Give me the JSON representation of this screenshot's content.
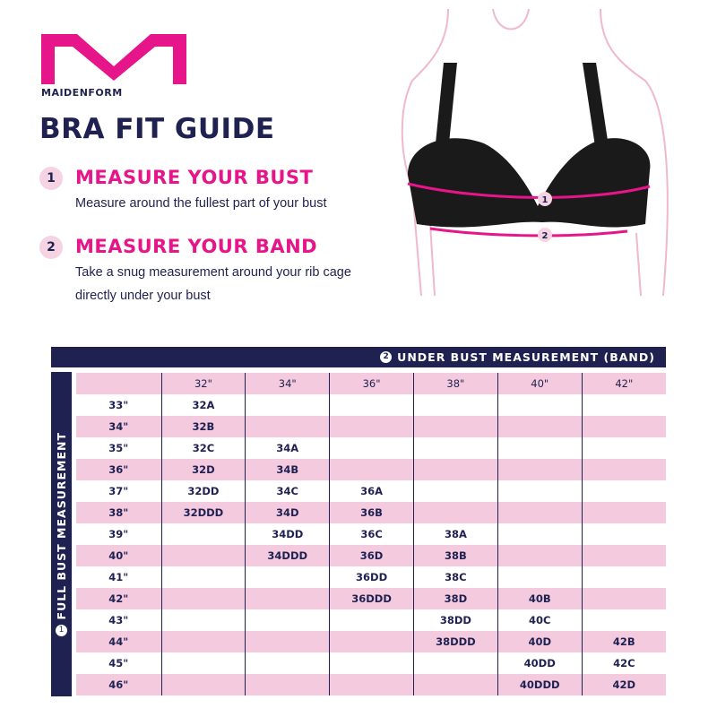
{
  "brand": {
    "name": "MAIDENFORM",
    "logo_letter": "M",
    "title": "BRA FIT GUIDE"
  },
  "colors": {
    "navy": "#1f2150",
    "magenta": "#e6158a",
    "light_pink": "#f4cadf"
  },
  "steps": [
    {
      "number": "1",
      "heading": "MEASURE YOUR BUST",
      "description": [
        "Measure around the fullest part of your bust"
      ]
    },
    {
      "number": "2",
      "heading": "MEASURE YOUR BAND",
      "description": [
        "Take a snug measurement around your rib cage",
        "directly under your bust"
      ]
    }
  ],
  "illustration": {
    "marker_1": "1",
    "marker_2": "2"
  },
  "table": {
    "band_label_number": "2",
    "band_label": "UNDER BUST MEASUREMENT (BAND)",
    "bust_label_number": "1",
    "bust_label": "FULL BUST MEASUREMENT",
    "band_sizes": [
      "32\"",
      "34\"",
      "36\"",
      "38\"",
      "40\"",
      "42\""
    ],
    "rows": [
      {
        "bust": "33\"",
        "sizes": [
          "32A",
          "",
          "",
          "",
          "",
          ""
        ]
      },
      {
        "bust": "34\"",
        "sizes": [
          "32B",
          "",
          "",
          "",
          "",
          ""
        ]
      },
      {
        "bust": "35\"",
        "sizes": [
          "32C",
          "34A",
          "",
          "",
          "",
          ""
        ]
      },
      {
        "bust": "36\"",
        "sizes": [
          "32D",
          "34B",
          "",
          "",
          "",
          ""
        ]
      },
      {
        "bust": "37\"",
        "sizes": [
          "32DD",
          "34C",
          "36A",
          "",
          "",
          ""
        ]
      },
      {
        "bust": "38\"",
        "sizes": [
          "32DDD",
          "34D",
          "36B",
          "",
          "",
          ""
        ]
      },
      {
        "bust": "39\"",
        "sizes": [
          "",
          "34DD",
          "36C",
          "38A",
          "",
          ""
        ]
      },
      {
        "bust": "40\"",
        "sizes": [
          "",
          "34DDD",
          "36D",
          "38B",
          "",
          ""
        ]
      },
      {
        "bust": "41\"",
        "sizes": [
          "",
          "",
          "36DD",
          "38C",
          "",
          ""
        ]
      },
      {
        "bust": "42\"",
        "sizes": [
          "",
          "",
          "36DDD",
          "38D",
          "40B",
          ""
        ]
      },
      {
        "bust": "43\"",
        "sizes": [
          "",
          "",
          "",
          "38DD",
          "40C",
          ""
        ]
      },
      {
        "bust": "44\"",
        "sizes": [
          "",
          "",
          "",
          "38DDD",
          "40D",
          "42B"
        ]
      },
      {
        "bust": "45\"",
        "sizes": [
          "",
          "",
          "",
          "",
          "40DD",
          "42C"
        ]
      },
      {
        "bust": "46\"",
        "sizes": [
          "",
          "",
          "",
          "",
          "40DDD",
          "42D"
        ]
      }
    ]
  }
}
